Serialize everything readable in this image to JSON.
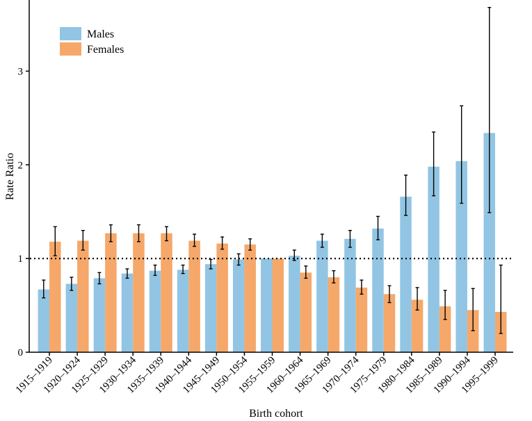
{
  "chart_data": {
    "type": "bar",
    "title": "",
    "xlabel": "Birth cohort",
    "ylabel": "Rate Ratio",
    "ylim": [
      0,
      3.7
    ],
    "yticks": [
      0,
      1,
      2,
      3
    ],
    "reference_line": 1,
    "grid": false,
    "legend_position": "top-left",
    "categories": [
      "1915–1919",
      "1920–1924",
      "1925–1929",
      "1930–1934",
      "1935–1939",
      "1940–1944",
      "1945–1949",
      "1950–1954",
      "1955–1959",
      "1960–1964",
      "1965–1969",
      "1970–1974",
      "1975–1979",
      "1980–1984",
      "1985–1989",
      "1990–1994",
      "1995–1999"
    ],
    "series": [
      {
        "name": "Males",
        "color": "#92C5E3",
        "values": [
          0.67,
          0.73,
          0.79,
          0.84,
          0.87,
          0.88,
          0.94,
          0.99,
          1.0,
          1.03,
          1.19,
          1.21,
          1.32,
          1.66,
          1.98,
          2.04,
          2.34
        ],
        "lower": [
          0.58,
          0.66,
          0.73,
          0.79,
          0.82,
          0.84,
          0.89,
          0.93,
          1.0,
          0.98,
          1.12,
          1.12,
          1.2,
          1.46,
          1.67,
          1.59,
          1.49
        ],
        "upper": [
          0.77,
          0.8,
          0.85,
          0.89,
          0.93,
          0.93,
          0.99,
          1.05,
          1.0,
          1.09,
          1.26,
          1.3,
          1.45,
          1.89,
          2.35,
          2.63,
          3.68
        ]
      },
      {
        "name": "Females",
        "color": "#F5A86A",
        "values": [
          1.18,
          1.19,
          1.27,
          1.27,
          1.27,
          1.19,
          1.16,
          1.15,
          1.0,
          0.85,
          0.8,
          0.69,
          0.62,
          0.56,
          0.49,
          0.45,
          0.43
        ],
        "lower": [
          1.03,
          1.09,
          1.18,
          1.18,
          1.19,
          1.13,
          1.1,
          1.09,
          1.0,
          0.79,
          0.74,
          0.62,
          0.53,
          0.45,
          0.35,
          0.23,
          0.2
        ],
        "upper": [
          1.34,
          1.3,
          1.36,
          1.36,
          1.34,
          1.26,
          1.23,
          1.21,
          1.0,
          0.92,
          0.87,
          0.77,
          0.71,
          0.69,
          0.66,
          0.68,
          0.93
        ]
      }
    ]
  }
}
